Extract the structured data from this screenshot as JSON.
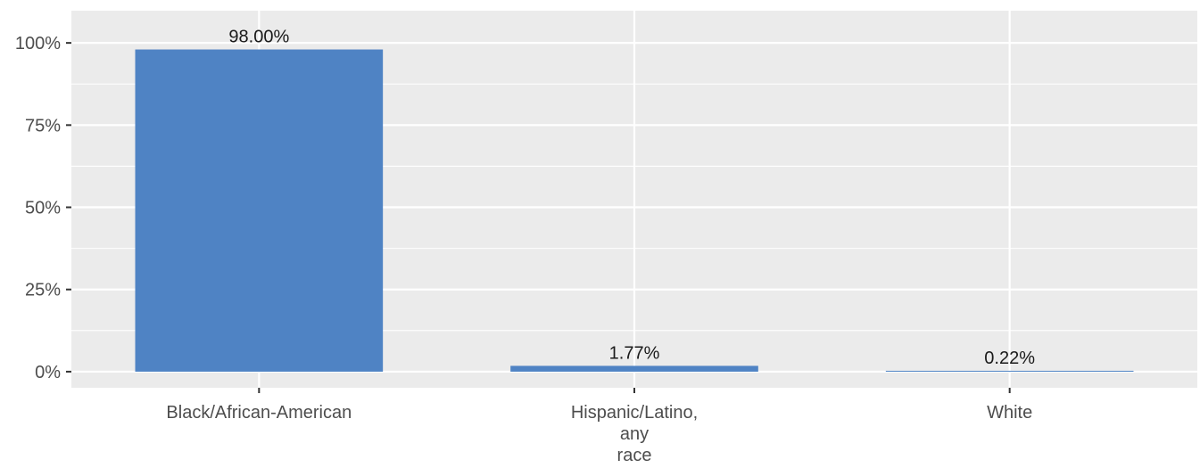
{
  "chart_data": {
    "type": "bar",
    "categories": [
      [
        "Black/African-American"
      ],
      [
        "Hispanic/Latino,",
        "any",
        "race"
      ],
      [
        "White"
      ]
    ],
    "values": [
      98.0,
      1.77,
      0.22
    ],
    "data_labels": [
      "98.00%",
      "1.77%",
      "0.22%"
    ],
    "yticks": [
      {
        "value": 0,
        "label": "0%"
      },
      {
        "value": 25,
        "label": "25%"
      },
      {
        "value": 50,
        "label": "50%"
      },
      {
        "value": 75,
        "label": "75%"
      },
      {
        "value": 100,
        "label": "100%"
      }
    ],
    "ylim": [
      -4.9,
      109.8
    ],
    "title": "",
    "xlabel": "",
    "ylabel": "",
    "grid": true,
    "legend": "none",
    "colors": {
      "bar": "#4f83c4",
      "panel": "#ebebeb",
      "grid": "#ffffff"
    }
  }
}
